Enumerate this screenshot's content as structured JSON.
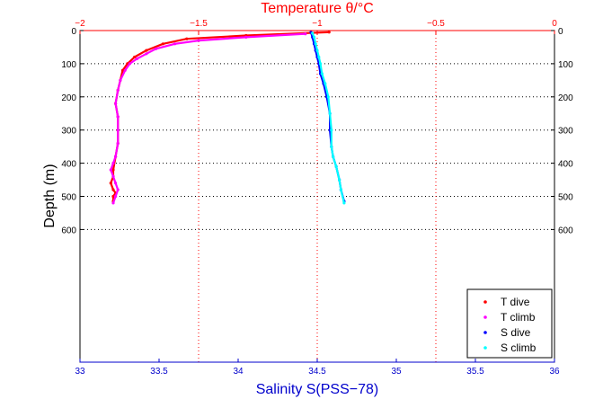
{
  "chart_data": {
    "type": "scatter",
    "title": "Temperature θ/°C",
    "ylabel": "Depth (m)",
    "xlabel": "Salinity S(PSS−78)",
    "yaxis": {
      "range": [
        0,
        1000
      ],
      "reversed": true,
      "ticks": [
        0,
        100,
        200,
        300,
        400,
        500,
        600
      ],
      "gridlines": [
        100,
        200,
        300,
        400,
        500,
        600
      ]
    },
    "top_axis": {
      "range": [
        -2,
        0
      ],
      "ticks": [
        -2,
        -1.5,
        -1,
        -0.5,
        0
      ],
      "tick_labels": [
        "−2",
        "−1.5",
        "−1",
        "−0.5",
        "0"
      ],
      "color": "#ff0000",
      "gridlines": [
        -1.5,
        -1,
        -0.5
      ]
    },
    "bottom_axis": {
      "range": [
        33,
        36
      ],
      "ticks": [
        33,
        33.5,
        34,
        34.5,
        35,
        35.5,
        36
      ],
      "tick_labels": [
        "33",
        "33.5",
        "34",
        "34.5",
        "35",
        "35.5",
        "36"
      ],
      "color": "#0000cc"
    },
    "grid": true,
    "legend_position": "bottom-right",
    "colors": {
      "t_dive": "#ff0000",
      "t_climb": "#ff00ff",
      "s_dive": "#0000ff",
      "s_climb": "#00ffff",
      "top_axis": "#ff0000",
      "bottom_axis": "#0000cc"
    },
    "series": [
      {
        "name": "T dive",
        "axis": "top",
        "color": "#ff0000",
        "x": [
          -0.95,
          -1.3,
          -1.55,
          -1.65,
          -1.72,
          -1.77,
          -1.8,
          -1.82,
          -1.83,
          -1.84,
          -1.85,
          -1.84,
          -1.84,
          -1.84,
          -1.85,
          -1.86,
          -1.86,
          -1.87,
          -1.86,
          -1.85,
          -1.86,
          -1.86
        ],
        "y": [
          5,
          15,
          25,
          40,
          60,
          80,
          100,
          120,
          150,
          180,
          220,
          260,
          300,
          340,
          380,
          420,
          440,
          460,
          480,
          490,
          500,
          515
        ]
      },
      {
        "name": "T climb",
        "axis": "top",
        "color": "#ff00ff",
        "x": [
          -1.86,
          -1.85,
          -1.84,
          -1.85,
          -1.86,
          -1.87,
          -1.86,
          -1.85,
          -1.84,
          -1.84,
          -1.84,
          -1.85,
          -1.84,
          -1.83,
          -1.81,
          -1.79,
          -1.76,
          -1.72,
          -1.68,
          -1.6,
          -1.5,
          -1.3,
          -1.05
        ],
        "y": [
          520,
          500,
          480,
          460,
          440,
          420,
          400,
          380,
          340,
          300,
          260,
          220,
          180,
          150,
          120,
          100,
          85,
          70,
          55,
          40,
          30,
          20,
          10
        ]
      },
      {
        "name": "S dive",
        "axis": "bottom",
        "color": "#0000ff",
        "x": [
          34.46,
          34.47,
          34.48,
          34.49,
          34.5,
          34.51,
          34.52,
          34.54,
          34.56,
          34.58,
          34.58,
          34.59,
          34.6,
          34.62,
          34.64,
          34.65,
          34.67
        ],
        "y": [
          5,
          20,
          40,
          60,
          80,
          100,
          130,
          160,
          200,
          250,
          300,
          350,
          380,
          410,
          450,
          480,
          515
        ]
      },
      {
        "name": "S climb",
        "axis": "bottom",
        "color": "#00ffff",
        "x": [
          34.67,
          34.65,
          34.64,
          34.62,
          34.6,
          34.59,
          34.59,
          34.58,
          34.57,
          34.55,
          34.53,
          34.52,
          34.51,
          34.5,
          34.49,
          34.48,
          34.47
        ],
        "y": [
          520,
          480,
          450,
          410,
          380,
          350,
          300,
          250,
          200,
          160,
          130,
          100,
          80,
          60,
          40,
          20,
          8
        ]
      }
    ],
    "legend": [
      {
        "label": "T dive",
        "color": "#ff0000"
      },
      {
        "label": "T climb",
        "color": "#ff00ff"
      },
      {
        "label": "S dive",
        "color": "#0000ff"
      },
      {
        "label": "S climb",
        "color": "#00ffff"
      }
    ]
  }
}
